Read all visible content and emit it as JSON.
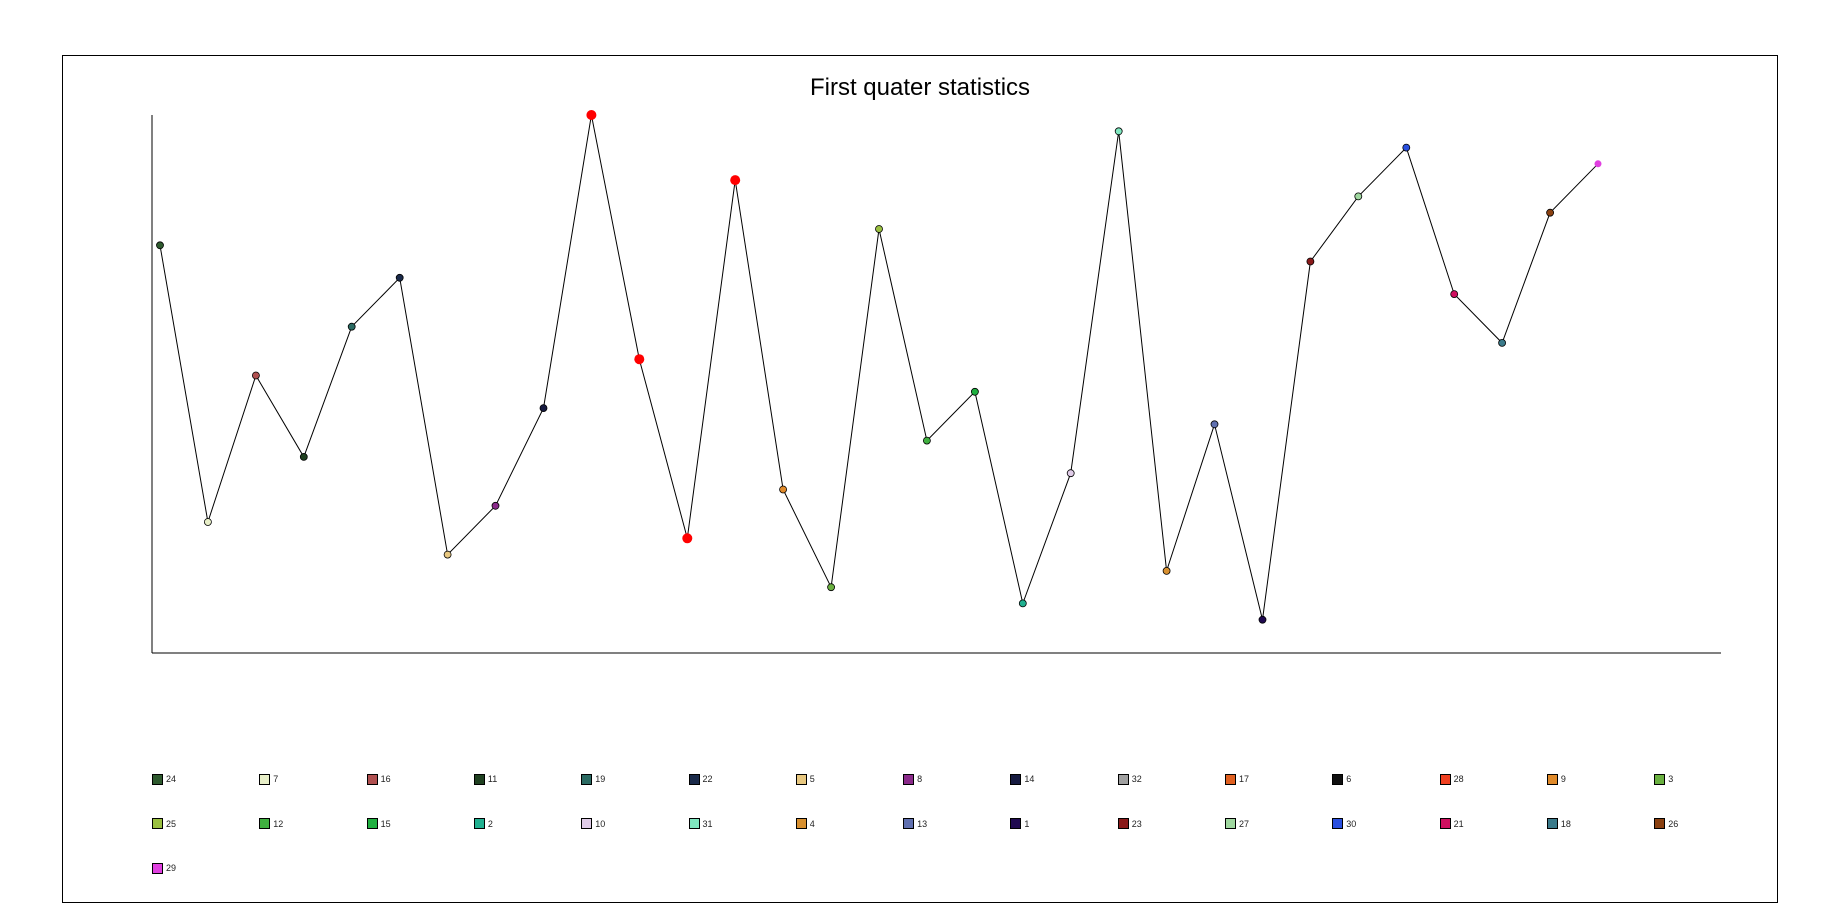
{
  "chart_data": {
    "type": "line",
    "title": "First quater statistics",
    "xlabel": "",
    "ylabel": "",
    "ylim": [
      0,
      32
    ],
    "grid": false,
    "legend_position": "bottom",
    "line_color": "#000000",
    "points": [
      {
        "label": "24",
        "value": 24,
        "color": "#2e5a2e"
      },
      {
        "label": "7",
        "value": 7,
        "color": "#e8efc8"
      },
      {
        "label": "16",
        "value": 16,
        "color": "#b05050"
      },
      {
        "label": "11",
        "value": 11,
        "color": "#1f4020"
      },
      {
        "label": "19",
        "value": 19,
        "color": "#2a6a62"
      },
      {
        "label": "22",
        "value": 22,
        "color": "#1a2a4a"
      },
      {
        "label": "5",
        "value": 5,
        "color": "#e8c880"
      },
      {
        "label": "8",
        "value": 8,
        "color": "#8a2a8a"
      },
      {
        "label": "14",
        "value": 14,
        "color": "#161a40"
      },
      {
        "label": "32",
        "value": 32,
        "color": "#ff0000",
        "highlight": true
      },
      {
        "label": "17",
        "value": 17,
        "color": "#ff0000",
        "highlight": true
      },
      {
        "label": "6",
        "value": 6,
        "color": "#ff0000",
        "highlight": true
      },
      {
        "label": "28",
        "value": 28,
        "color": "#ff0000",
        "highlight": true
      },
      {
        "label": "9",
        "value": 9,
        "color": "#e08a2a"
      },
      {
        "label": "3",
        "value": 3,
        "color": "#6ab040"
      },
      {
        "label": "25",
        "value": 25,
        "color": "#9ac040"
      },
      {
        "label": "12",
        "value": 12,
        "color": "#40b040"
      },
      {
        "label": "15",
        "value": 15,
        "color": "#20b040"
      },
      {
        "label": "2",
        "value": 2,
        "color": "#20b090"
      },
      {
        "label": "10",
        "value": 10,
        "color": "#e0cce8"
      },
      {
        "label": "31",
        "value": 31,
        "color": "#80e8c0"
      },
      {
        "label": "4",
        "value": 4,
        "color": "#d89030"
      },
      {
        "label": "13",
        "value": 13,
        "color": "#6070b0"
      },
      {
        "label": "1",
        "value": 1,
        "color": "#200a50"
      },
      {
        "label": "23",
        "value": 23,
        "color": "#8a1a1a"
      },
      {
        "label": "27",
        "value": 27,
        "color": "#a0d8a0"
      },
      {
        "label": "30",
        "value": 30,
        "color": "#2a50e0"
      },
      {
        "label": "21",
        "value": 21,
        "color": "#d01060"
      },
      {
        "label": "18",
        "value": 18,
        "color": "#3a7a8a"
      },
      {
        "label": "26",
        "value": 26,
        "color": "#8a4010"
      },
      {
        "label": "29",
        "value": 29,
        "color": "#e040e0",
        "no_border": true
      }
    ],
    "legend": [
      {
        "label": "24",
        "color": "#2e5a2e"
      },
      {
        "label": "7",
        "color": "#e8efc8"
      },
      {
        "label": "16",
        "color": "#b05050"
      },
      {
        "label": "11",
        "color": "#1f4020"
      },
      {
        "label": "19",
        "color": "#2a6a62"
      },
      {
        "label": "22",
        "color": "#1a2a4a"
      },
      {
        "label": "5",
        "color": "#e8c880"
      },
      {
        "label": "8",
        "color": "#8a2a8a"
      },
      {
        "label": "14",
        "color": "#161a40"
      },
      {
        "label": "32",
        "color": "#a0a0a0"
      },
      {
        "label": "17",
        "color": "#e06020"
      },
      {
        "label": "6",
        "color": "#101010"
      },
      {
        "label": "28",
        "color": "#f04020"
      },
      {
        "label": "9",
        "color": "#e08a2a"
      },
      {
        "label": "3",
        "color": "#6ab040"
      },
      {
        "label": "25",
        "color": "#9ac040"
      },
      {
        "label": "12",
        "color": "#40b040"
      },
      {
        "label": "15",
        "color": "#20b040"
      },
      {
        "label": "2",
        "color": "#20b090"
      },
      {
        "label": "10",
        "color": "#e0cce8"
      },
      {
        "label": "31",
        "color": "#80e8c0"
      },
      {
        "label": "4",
        "color": "#d89030"
      },
      {
        "label": "13",
        "color": "#6070b0"
      },
      {
        "label": "1",
        "color": "#200a50"
      },
      {
        "label": "23",
        "color": "#8a1a1a"
      },
      {
        "label": "27",
        "color": "#a0d8a0"
      },
      {
        "label": "30",
        "color": "#2a50e0"
      },
      {
        "label": "21",
        "color": "#d01060"
      },
      {
        "label": "18",
        "color": "#3a7a8a"
      },
      {
        "label": "26",
        "color": "#8a4010"
      },
      {
        "label": "29",
        "color": "#e040e0"
      }
    ]
  }
}
